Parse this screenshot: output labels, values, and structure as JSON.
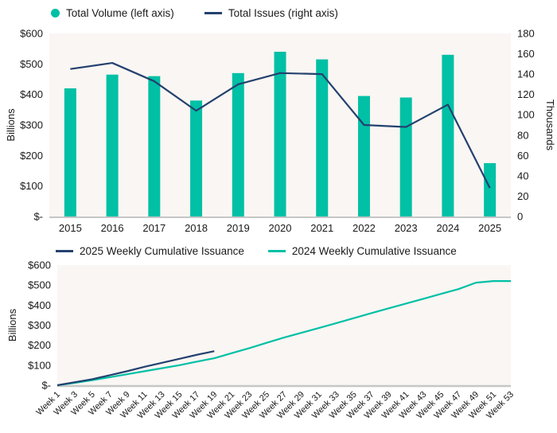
{
  "colors": {
    "teal": "#00C0A5",
    "navy": "#24416F",
    "plot_background": "#FAF6F3",
    "axis_line": "#C6C6C6",
    "text": "#1A1A1A",
    "page_background": "#FFFFFF"
  },
  "chart_data": [
    {
      "type": "bar",
      "title": "",
      "legend_position": "top",
      "grid": false,
      "categories": [
        "2015",
        "2016",
        "2017",
        "2018",
        "2019",
        "2020",
        "2021",
        "2022",
        "2023",
        "2024",
        "2025"
      ],
      "series": [
        {
          "name": "Total Volume (left axis)",
          "type": "bar",
          "axis": "left",
          "color": "teal",
          "values": [
            420,
            465,
            460,
            380,
            470,
            540,
            515,
            395,
            390,
            530,
            175
          ]
        },
        {
          "name": "Total Issues (right axis)",
          "type": "line",
          "axis": "right",
          "color": "navy",
          "values": [
            145,
            151,
            133,
            104,
            130,
            141,
            140,
            90,
            88,
            110,
            28
          ]
        }
      ],
      "left_axis": {
        "label": "Billions",
        "min": 0,
        "max": 600,
        "ticks": [
          "$600",
          "$500",
          "$400",
          "$300",
          "$200",
          "$100",
          "$-"
        ]
      },
      "right_axis": {
        "label": "Thousands",
        "min": 0,
        "max": 180,
        "ticks": [
          "180",
          "160",
          "140",
          "120",
          "100",
          "80",
          "60",
          "40",
          "20",
          "0"
        ]
      }
    },
    {
      "type": "line",
      "title": "",
      "legend_position": "top",
      "grid": false,
      "x": [
        "Week 1",
        "Week 3",
        "Week 5",
        "Week 7",
        "Week 9",
        "Week 11",
        "Week 13",
        "Week 15",
        "Week 17",
        "Week 19",
        "Week 21",
        "Week 23",
        "Week 25",
        "Week 27",
        "Week 29",
        "Week 31",
        "Week 33",
        "Week 35",
        "Week 37",
        "Week 39",
        "Week 41",
        "Week 43",
        "Week 45",
        "Week 47",
        "Week 49",
        "Week 51",
        "Week 53"
      ],
      "series": [
        {
          "name": "2025 Weekly Cumulative Issuance",
          "type": "line",
          "color": "navy",
          "values": [
            0,
            15,
            30,
            50,
            70,
            92,
            112,
            132,
            152,
            170
          ]
        },
        {
          "name": "2024 Weekly Cumulative Issuance",
          "type": "line",
          "color": "teal",
          "values": [
            0,
            12,
            25,
            40,
            55,
            70,
            85,
            100,
            118,
            135,
            160,
            185,
            212,
            238,
            262,
            286,
            310,
            335,
            360,
            384,
            408,
            432,
            456,
            480,
            512,
            520,
            520
          ]
        }
      ],
      "left_axis": {
        "label": "Billions",
        "min": 0,
        "max": 600,
        "ticks": [
          "$600",
          "$500",
          "$400",
          "$300",
          "$200",
          "$100",
          "$-"
        ]
      }
    }
  ]
}
